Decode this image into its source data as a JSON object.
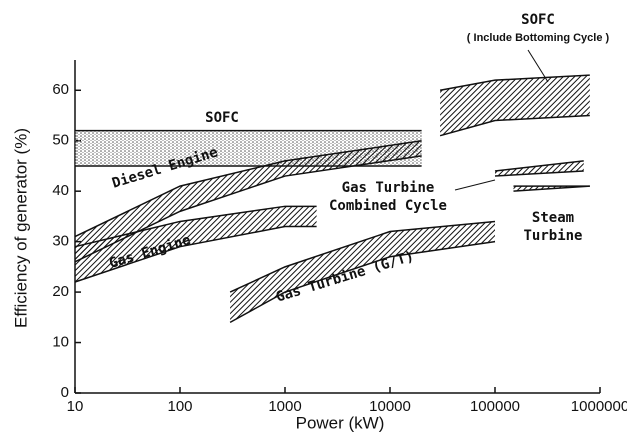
{
  "chart_data": {
    "type": "band",
    "xlabel": "Power (kW)",
    "ylabel": "Efficiency of generator (%)",
    "xscale": "log",
    "xlim": [
      10,
      1000000
    ],
    "xticks": [
      10,
      100,
      1000,
      10000,
      100000,
      1000000
    ],
    "ylim": [
      0,
      66
    ],
    "yticks": [
      0,
      10,
      20,
      30,
      40,
      50,
      60
    ],
    "series": [
      {
        "label": [
          "SOFC"
        ],
        "pattern": "dots",
        "color": "#111",
        "x": [
          10,
          20000
        ],
        "lower": [
          45,
          45
        ],
        "upper": [
          52,
          52
        ]
      },
      {
        "label": [
          "Diesel Engine"
        ],
        "pattern": "hatch",
        "color": "#111",
        "x": [
          10,
          100,
          1000,
          20000
        ],
        "lower": [
          26,
          36,
          43,
          47
        ],
        "upper": [
          31,
          41,
          46,
          50
        ]
      },
      {
        "label": [
          "Gas Engine"
        ],
        "pattern": "hatch",
        "color": "#111",
        "x": [
          10,
          100,
          1000,
          2000
        ],
        "lower": [
          22,
          29,
          33,
          33
        ],
        "upper": [
          29,
          34,
          37,
          37
        ]
      },
      {
        "label": [
          "Gas Turbine (G/T)"
        ],
        "pattern": "hatch",
        "color": "#111",
        "x": [
          300,
          1000,
          10000,
          100000
        ],
        "lower": [
          14,
          20,
          27,
          30
        ],
        "upper": [
          20,
          25,
          32,
          34
        ]
      },
      {
        "label": [
          "Gas Turbine",
          "Combined Cycle"
        ],
        "pattern": "hatch",
        "color": "#111",
        "x": [
          100000,
          700000
        ],
        "lower": [
          43,
          44
        ],
        "upper": [
          44,
          46
        ]
      },
      {
        "label": [
          "Steam",
          "Turbine"
        ],
        "pattern": "hatch",
        "color": "#111",
        "x": [
          150000,
          800000
        ],
        "lower": [
          40,
          41
        ],
        "upper": [
          41,
          41
        ]
      },
      {
        "label": [
          "SOFC"
        ],
        "note": "( Include Bottoming Cycle )",
        "pattern": "hatch",
        "color": "#111",
        "x": [
          30000,
          100000,
          800000
        ],
        "lower": [
          51,
          54,
          55
        ],
        "upper": [
          60,
          62,
          63
        ]
      }
    ]
  }
}
